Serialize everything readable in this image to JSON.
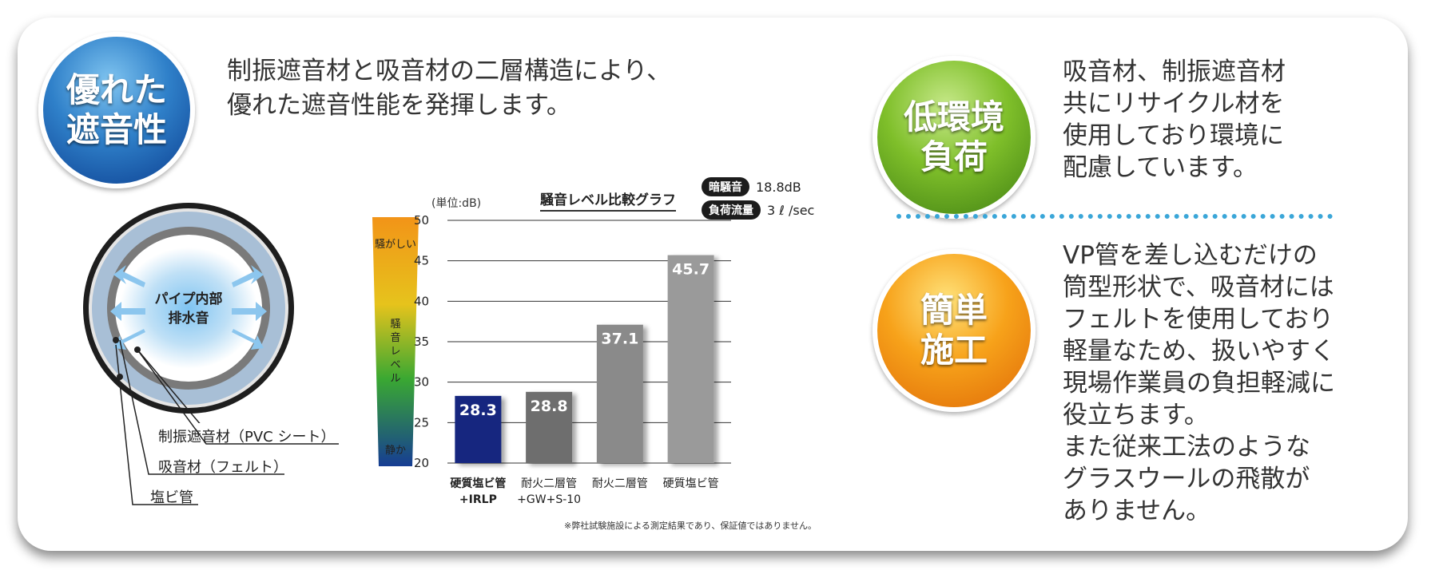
{
  "badges": {
    "sound": "優れた\n遮音性",
    "eco": "低環境\n負荷",
    "easy": "簡単\n施工"
  },
  "headline": "制振遮音材と吸音材の二層構造により、\n優れた遮音性能を発揮します。",
  "eco_text": "吸音材、制振遮音材\n共にリサイクル材を\n使用しており環境に\n配慮しています。",
  "install_text": "VP管を差し込むだけの\n筒型形状で、吸音材には\nフェルトを使用しており\n軽量なため、扱いやすく\n現場作業員の負担軽減に\n役立ちます。\nまた従来工法のような\nグラスウールの飛散が\nありません。",
  "pipe": {
    "center_label": "パイプ内部\n排水音",
    "labels": [
      "制振遮音材（PVC シート）",
      "吸音材（フェルト）",
      "塩ビ管"
    ]
  },
  "conditions": {
    "noise_label": "暗騒音",
    "noise_value": "18.8dB",
    "flow_label": "負荷流量",
    "flow_value": "3 ℓ /sec"
  },
  "footnote": "※弊社試験施設による測定結果であり、保証値ではありません。",
  "chart_data": {
    "type": "bar",
    "title": "騒音レベル比較グラフ",
    "unit": "(単位:dB)",
    "categories": [
      "硬質塩ビ管\n+IRLP",
      "耐火二層管\n+GW+S-10",
      "耐火二層管",
      "硬質塩ビ管"
    ],
    "values": [
      28.3,
      28.8,
      37.1,
      45.7
    ],
    "value_labels": [
      "28.3",
      "28.8",
      "37.1",
      "45.7"
    ],
    "ylim": [
      20,
      50
    ],
    "yticks": [
      20,
      25,
      30,
      35,
      40,
      45,
      50
    ],
    "grid": true,
    "bar_colors": [
      "#12287f",
      "#6e6e6e",
      "#8a8a8a",
      "#9a9a9a"
    ],
    "scale_bar": {
      "top_label": "騒がしい",
      "middle_label": "騒音レベル",
      "bottom_label": "静か"
    }
  }
}
